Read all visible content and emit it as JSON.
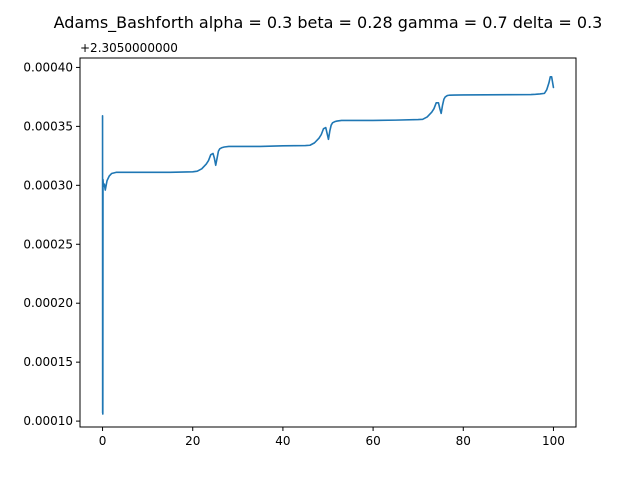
{
  "chart_data": {
    "type": "line",
    "title": "Adams_Bashforth alpha = 0.3 beta = 0.28 gamma = 0.7 delta = 0.3",
    "xlabel": "",
    "ylabel": "",
    "y_offset_label": "+2.3050000000",
    "xlim": [
      -5,
      105
    ],
    "ylim": [
      9.5e-05,
      0.000408
    ],
    "grid": false,
    "xticks": [
      0,
      20,
      40,
      60,
      80,
      100
    ],
    "xtick_labels": [
      "0",
      "20",
      "40",
      "60",
      "80",
      "100"
    ],
    "yticks": [
      0.0001,
      0.00015,
      0.0002,
      0.00025,
      0.0003,
      0.00035,
      0.0004
    ],
    "ytick_labels": [
      "0.00010",
      "0.00015",
      "0.00020",
      "0.00025",
      "0.00030",
      "0.00035",
      "0.00040"
    ],
    "series": [
      {
        "name": "",
        "color": "#1f77b4",
        "x": [
          0,
          0.02,
          0.04,
          0.06,
          0.1,
          0.2,
          0.4,
          0.6,
          0.8,
          1.0,
          1.5,
          2,
          3,
          5,
          10,
          15,
          20,
          21,
          22,
          23,
          23.5,
          24,
          24.5,
          24.8,
          25.1,
          25.4,
          25.7,
          26,
          26.5,
          27,
          28,
          30,
          35,
          40,
          45,
          46,
          47,
          48,
          48.5,
          49,
          49.5,
          49.8,
          50.1,
          50.4,
          50.7,
          51,
          51.5,
          52,
          53,
          55,
          60,
          65,
          70,
          71,
          72,
          73,
          73.5,
          74,
          74.5,
          74.8,
          75.1,
          75.4,
          75.7,
          76,
          76.5,
          77,
          78,
          80,
          85,
          90,
          95,
          96,
          97,
          98,
          98.5,
          99,
          99.3,
          99.6,
          100
        ],
        "y": [
          0.000359,
          0.000107,
          0.0003,
          0.000106,
          0.000305,
          0.000299,
          0.000301,
          0.000296,
          0.0003,
          0.000304,
          0.000308,
          0.00031,
          0.000311,
          0.000311,
          0.000311,
          0.000311,
          0.0003115,
          0.000312,
          0.000314,
          0.000318,
          0.000321,
          0.000326,
          0.000327,
          0.000323,
          0.000317,
          0.000323,
          0.000329,
          0.000331,
          0.000332,
          0.0003325,
          0.000333,
          0.000333,
          0.000333,
          0.0003335,
          0.0003337,
          0.000334,
          0.000336,
          0.00034,
          0.000343,
          0.000348,
          0.000349,
          0.000344,
          0.000339,
          0.000346,
          0.000351,
          0.000353,
          0.000354,
          0.0003545,
          0.000355,
          0.000355,
          0.000355,
          0.0003553,
          0.0003558,
          0.000356,
          0.000358,
          0.000362,
          0.000365,
          0.00037,
          0.00037,
          0.000365,
          0.000361,
          0.000368,
          0.000373,
          0.000375,
          0.0003762,
          0.0003765,
          0.0003766,
          0.0003767,
          0.0003768,
          0.0003769,
          0.000377,
          0.0003772,
          0.0003775,
          0.000378,
          0.000381,
          0.000387,
          0.000392,
          0.000392,
          0.000383
        ]
      }
    ]
  }
}
